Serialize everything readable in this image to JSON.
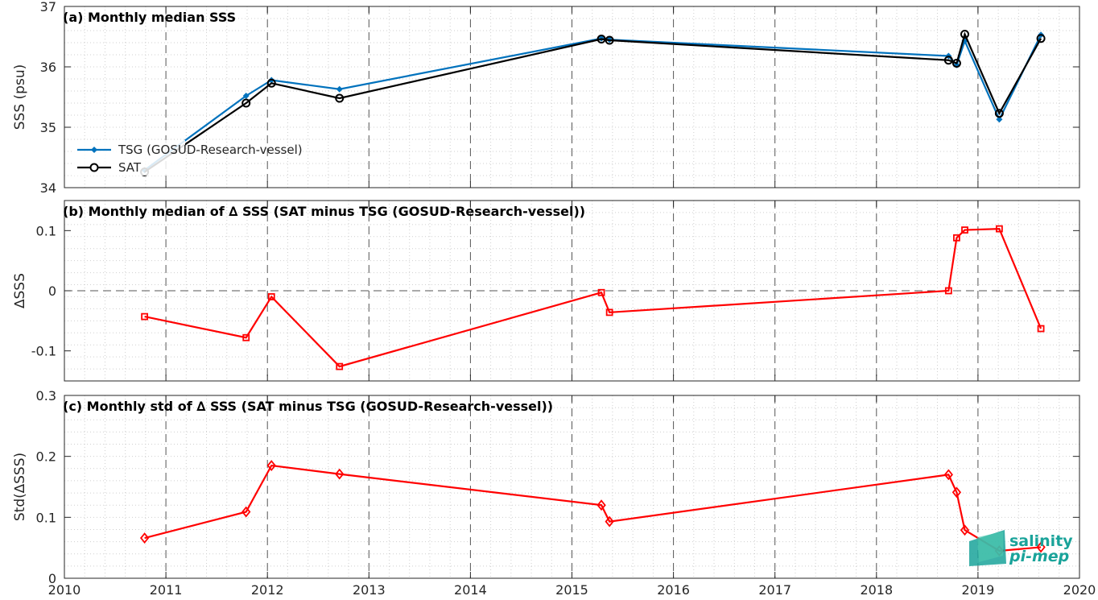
{
  "chart_data": [
    {
      "id": "a",
      "type": "line",
      "title": "(a) Monthly median SSS",
      "ylabel": "SSS (psu)",
      "xlim": [
        2010,
        2020
      ],
      "ylim": [
        34,
        37
      ],
      "yticks": [
        34,
        35,
        36,
        37
      ],
      "ytick_labels": [
        "34",
        "35",
        "36",
        "37"
      ],
      "grid": true,
      "legend_position": "left",
      "series": [
        {
          "name": "TSG (GOSUD-Research-vessel)",
          "color": "#0072bd",
          "marker": "dot",
          "x": [
            2010.79,
            2011.79,
            2012.04,
            2012.71,
            2015.29,
            2015.37,
            2018.71,
            2018.79,
            2018.87,
            2019.21,
            2019.62
          ],
          "y": [
            34.29,
            35.52,
            35.78,
            35.63,
            36.47,
            36.45,
            36.18,
            36.03,
            36.43,
            35.13,
            36.53
          ]
        },
        {
          "name": "SAT",
          "color": "#000000",
          "marker": "circle",
          "x": [
            2010.79,
            2011.79,
            2012.04,
            2012.71,
            2015.29,
            2015.37,
            2018.71,
            2018.79,
            2018.87,
            2019.21,
            2019.62
          ],
          "y": [
            34.26,
            35.4,
            35.73,
            35.48,
            36.46,
            36.44,
            36.11,
            36.06,
            36.54,
            35.23,
            36.47
          ]
        }
      ]
    },
    {
      "id": "b",
      "type": "line",
      "title": "(b) Monthly median of ∆ SSS (SAT minus TSG (GOSUD-Research-vessel))",
      "ylabel": "∆SSS",
      "xlim": [
        2010,
        2020
      ],
      "ylim": [
        -0.15,
        0.15
      ],
      "yticks": [
        -0.1,
        0,
        0.1
      ],
      "ytick_labels": [
        "-0.1",
        "0",
        "0.1"
      ],
      "zero_line": true,
      "grid": true,
      "series": [
        {
          "color": "#ff0000",
          "marker": "square",
          "x": [
            2010.79,
            2011.79,
            2012.04,
            2012.71,
            2015.29,
            2015.37,
            2018.71,
            2018.79,
            2018.87,
            2019.21,
            2019.62
          ],
          "y": [
            -0.043,
            -0.078,
            -0.01,
            -0.126,
            -0.003,
            -0.036,
            0.0,
            0.088,
            0.101,
            0.103,
            -0.063
          ]
        }
      ]
    },
    {
      "id": "c",
      "type": "line",
      "title": "(c) Monthly std of ∆ SSS (SAT minus TSG (GOSUD-Research-vessel))",
      "ylabel": "Std(∆SSS)",
      "xlim": [
        2010,
        2020
      ],
      "ylim": [
        0,
        0.3
      ],
      "yticks": [
        0,
        0.1,
        0.2,
        0.3
      ],
      "ytick_labels": [
        "0",
        "0.1",
        "0.2",
        "0.3"
      ],
      "xticks": [
        2010,
        2011,
        2012,
        2013,
        2014,
        2015,
        2016,
        2017,
        2018,
        2019,
        2020
      ],
      "xtick_labels": [
        "2010",
        "2011",
        "2012",
        "2013",
        "2014",
        "2015",
        "2016",
        "2017",
        "2018",
        "2019",
        "2020"
      ],
      "grid": true,
      "series": [
        {
          "color": "#ff0000",
          "marker": "diamond",
          "x": [
            2010.79,
            2011.79,
            2012.04,
            2012.71,
            2015.29,
            2015.37,
            2018.71,
            2018.79,
            2018.87,
            2019.21,
            2019.62
          ],
          "y": [
            0.066,
            0.109,
            0.185,
            0.171,
            0.12,
            0.093,
            0.17,
            0.141,
            0.079,
            0.045,
            0.051
          ]
        }
      ]
    }
  ],
  "logo": {
    "line1": "salinity",
    "line2": "pi-mep"
  }
}
